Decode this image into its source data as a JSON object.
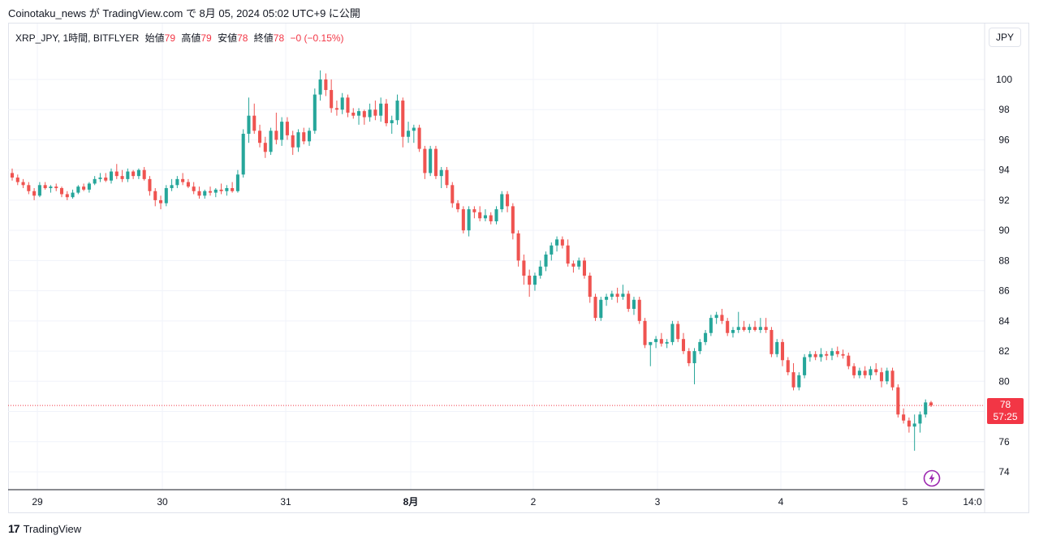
{
  "header": {
    "publisher_line": "Coinotaku_news が TradingView.com で 8月 05, 2024 05:02 UTC+9 に公開"
  },
  "legend": {
    "symbol": "XRP_JPY, 1時間, BITFLYER",
    "open_label": "始値",
    "open_value": "79",
    "high_label": "高値",
    "high_value": "79",
    "low_label": "安値",
    "low_value": "78",
    "close_label": "終値",
    "close_value": "78",
    "change": "−0 (−0.15%)"
  },
  "currency_button": "JPY",
  "price_tag": {
    "price": "78",
    "countdown": "57:25"
  },
  "footer": {
    "brand": "TradingView",
    "logo": "17"
  },
  "colors": {
    "up": "#26a69a",
    "down": "#ef5350",
    "grid": "#f0f3fa",
    "axis_text": "#131722",
    "price_line": "#f23645"
  },
  "icons": {
    "flash": "lightning-circle-icon"
  },
  "chart_data": {
    "type": "candlestick",
    "symbol": "XRP_JPY",
    "interval": "1h",
    "exchange": "BITFLYER",
    "ylim": [
      72.5,
      102.5
    ],
    "y_ticks": [
      74,
      76,
      78,
      80,
      82,
      84,
      86,
      88,
      90,
      92,
      94,
      96,
      98,
      100
    ],
    "x_ticks": [
      "29",
      "30",
      "31",
      "8月",
      "2",
      "3",
      "4",
      "5",
      "14:0"
    ],
    "current_price": 78.4,
    "grid": true,
    "ohlc": [
      [
        93.8,
        94.1,
        93.3,
        93.5
      ],
      [
        93.5,
        93.7,
        93.0,
        93.2
      ],
      [
        93.2,
        93.4,
        92.8,
        93.0
      ],
      [
        93.0,
        93.2,
        92.4,
        92.6
      ],
      [
        92.6,
        92.8,
        92.0,
        92.3
      ],
      [
        92.3,
        93.2,
        92.2,
        93.0
      ],
      [
        93.0,
        93.2,
        92.7,
        92.8
      ],
      [
        92.8,
        93.0,
        92.5,
        92.9
      ],
      [
        92.9,
        93.1,
        92.6,
        92.8
      ],
      [
        92.8,
        92.9,
        92.2,
        92.4
      ],
      [
        92.4,
        92.6,
        92.0,
        92.2
      ],
      [
        92.2,
        92.7,
        92.1,
        92.5
      ],
      [
        92.5,
        93.0,
        92.4,
        92.9
      ],
      [
        92.9,
        93.1,
        92.6,
        92.7
      ],
      [
        92.7,
        93.2,
        92.5,
        93.1
      ],
      [
        93.1,
        93.6,
        93.0,
        93.4
      ],
      [
        93.4,
        93.8,
        93.2,
        93.5
      ],
      [
        93.5,
        93.8,
        93.2,
        93.3
      ],
      [
        93.3,
        94.1,
        93.1,
        93.9
      ],
      [
        93.9,
        94.4,
        93.4,
        93.6
      ],
      [
        93.6,
        94.0,
        93.2,
        93.4
      ],
      [
        93.4,
        94.1,
        93.2,
        93.9
      ],
      [
        93.9,
        94.0,
        93.4,
        93.6
      ],
      [
        93.6,
        94.1,
        93.4,
        94.0
      ],
      [
        94.0,
        94.2,
        93.3,
        93.4
      ],
      [
        93.4,
        93.6,
        92.3,
        92.6
      ],
      [
        92.6,
        92.8,
        91.6,
        92.0
      ],
      [
        92.0,
        92.3,
        91.4,
        91.8
      ],
      [
        91.8,
        93.0,
        91.6,
        92.8
      ],
      [
        92.8,
        93.4,
        92.6,
        93.0
      ],
      [
        93.0,
        93.6,
        92.8,
        93.4
      ],
      [
        93.4,
        93.8,
        93.0,
        93.2
      ],
      [
        93.2,
        93.4,
        92.8,
        92.9
      ],
      [
        92.9,
        93.2,
        92.4,
        92.6
      ],
      [
        92.6,
        92.9,
        92.1,
        92.3
      ],
      [
        92.3,
        92.7,
        92.1,
        92.6
      ],
      [
        92.6,
        92.9,
        92.3,
        92.5
      ],
      [
        92.5,
        92.8,
        92.2,
        92.7
      ],
      [
        92.7,
        93.1,
        92.4,
        92.6
      ],
      [
        92.6,
        93.0,
        92.3,
        92.8
      ],
      [
        92.8,
        93.2,
        92.5,
        92.6
      ],
      [
        92.6,
        94.0,
        92.5,
        93.7
      ],
      [
        93.7,
        96.7,
        93.5,
        96.4
      ],
      [
        96.4,
        98.8,
        95.8,
        97.6
      ],
      [
        97.6,
        98.4,
        96.4,
        96.6
      ],
      [
        96.6,
        97.0,
        95.5,
        95.8
      ],
      [
        95.8,
        96.2,
        94.8,
        95.2
      ],
      [
        95.2,
        96.8,
        95.0,
        96.6
      ],
      [
        96.6,
        97.8,
        95.7,
        96.0
      ],
      [
        96.0,
        97.5,
        95.6,
        97.2
      ],
      [
        97.2,
        97.5,
        96.0,
        96.3
      ],
      [
        96.3,
        96.6,
        95.0,
        95.5
      ],
      [
        95.5,
        96.7,
        95.2,
        96.5
      ],
      [
        96.5,
        96.8,
        95.7,
        95.9
      ],
      [
        95.9,
        96.8,
        95.6,
        96.6
      ],
      [
        96.6,
        99.4,
        96.4,
        99.0
      ],
      [
        99.0,
        100.6,
        98.6,
        100.0
      ],
      [
        100.0,
        100.4,
        98.9,
        99.3
      ],
      [
        99.3,
        100.0,
        97.8,
        98.1
      ],
      [
        98.1,
        98.6,
        97.6,
        98.0
      ],
      [
        98.0,
        99.1,
        97.7,
        98.8
      ],
      [
        98.8,
        99.0,
        97.5,
        97.8
      ],
      [
        97.8,
        98.1,
        97.4,
        97.6
      ],
      [
        97.6,
        98.1,
        97.0,
        97.9
      ],
      [
        97.9,
        98.0,
        97.0,
        97.5
      ],
      [
        97.5,
        98.4,
        97.2,
        98.0
      ],
      [
        98.0,
        98.6,
        97.3,
        97.6
      ],
      [
        97.6,
        98.8,
        97.2,
        98.4
      ],
      [
        98.4,
        98.7,
        96.9,
        97.1
      ],
      [
        97.1,
        97.6,
        96.4,
        97.3
      ],
      [
        97.3,
        99.0,
        97.0,
        98.6
      ],
      [
        98.6,
        98.8,
        95.5,
        96.2
      ],
      [
        96.2,
        97.2,
        95.8,
        96.6
      ],
      [
        96.6,
        97.0,
        95.8,
        96.8
      ],
      [
        96.8,
        97.0,
        95.2,
        95.4
      ],
      [
        95.4,
        95.6,
        93.4,
        93.8
      ],
      [
        93.8,
        95.6,
        93.6,
        95.4
      ],
      [
        95.4,
        95.6,
        93.4,
        93.6
      ],
      [
        93.6,
        94.2,
        92.8,
        94.0
      ],
      [
        94.0,
        94.2,
        92.8,
        93.0
      ],
      [
        93.0,
        93.2,
        91.5,
        91.8
      ],
      [
        91.8,
        92.0,
        91.2,
        91.4
      ],
      [
        91.4,
        91.6,
        89.8,
        90.0
      ],
      [
        90.0,
        91.6,
        89.6,
        91.4
      ],
      [
        91.4,
        91.6,
        90.8,
        91.2
      ],
      [
        91.2,
        91.6,
        90.6,
        90.8
      ],
      [
        90.8,
        91.4,
        90.6,
        91.0
      ],
      [
        91.0,
        91.2,
        90.4,
        90.6
      ],
      [
        90.6,
        91.6,
        90.4,
        91.4
      ],
      [
        91.4,
        92.6,
        91.2,
        92.4
      ],
      [
        92.4,
        92.6,
        91.2,
        91.6
      ],
      [
        91.6,
        91.8,
        89.4,
        89.8
      ],
      [
        89.8,
        90.0,
        87.6,
        88.0
      ],
      [
        88.0,
        88.4,
        86.4,
        87.0
      ],
      [
        87.0,
        87.4,
        85.6,
        86.4
      ],
      [
        86.4,
        87.2,
        86.0,
        87.0
      ],
      [
        87.0,
        88.0,
        86.8,
        87.6
      ],
      [
        87.6,
        88.6,
        87.3,
        88.4
      ],
      [
        88.4,
        89.2,
        88.0,
        89.0
      ],
      [
        89.0,
        89.6,
        88.6,
        89.4
      ],
      [
        89.4,
        89.6,
        88.8,
        89.0
      ],
      [
        89.0,
        89.4,
        87.6,
        87.8
      ],
      [
        87.8,
        88.0,
        87.2,
        87.6
      ],
      [
        87.6,
        88.2,
        87.4,
        88.0
      ],
      [
        88.0,
        88.2,
        86.8,
        87.0
      ],
      [
        87.0,
        87.2,
        85.2,
        85.6
      ],
      [
        85.6,
        85.8,
        84.0,
        84.2
      ],
      [
        84.2,
        85.6,
        84.0,
        85.4
      ],
      [
        85.4,
        85.8,
        85.0,
        85.6
      ],
      [
        85.6,
        86.0,
        85.4,
        85.8
      ],
      [
        85.8,
        86.2,
        85.2,
        85.6
      ],
      [
        85.6,
        86.4,
        85.4,
        85.8
      ],
      [
        85.8,
        86.0,
        84.6,
        84.8
      ],
      [
        84.8,
        85.6,
        84.4,
        85.4
      ],
      [
        85.4,
        85.6,
        83.8,
        84.0
      ],
      [
        84.0,
        84.2,
        82.2,
        82.4
      ],
      [
        82.4,
        82.6,
        81.0,
        82.6
      ],
      [
        82.6,
        83.0,
        82.2,
        82.8
      ],
      [
        82.8,
        83.2,
        82.3,
        82.5
      ],
      [
        82.5,
        82.8,
        82.2,
        82.6
      ],
      [
        82.6,
        84.0,
        82.4,
        83.8
      ],
      [
        83.8,
        84.0,
        82.6,
        82.8
      ],
      [
        82.8,
        83.2,
        81.8,
        82.0
      ],
      [
        82.0,
        82.2,
        81.0,
        81.2
      ],
      [
        81.2,
        82.2,
        79.8,
        82.0
      ],
      [
        82.0,
        82.8,
        81.8,
        82.6
      ],
      [
        82.6,
        83.4,
        82.4,
        83.2
      ],
      [
        83.2,
        84.4,
        83.0,
        84.2
      ],
      [
        84.2,
        84.6,
        83.8,
        84.4
      ],
      [
        84.4,
        84.8,
        83.8,
        84.0
      ],
      [
        84.0,
        84.2,
        83.0,
        83.2
      ],
      [
        83.2,
        83.6,
        82.9,
        83.4
      ],
      [
        83.4,
        84.6,
        83.2,
        83.6
      ],
      [
        83.6,
        84.0,
        83.3,
        83.4
      ],
      [
        83.4,
        83.8,
        83.2,
        83.6
      ],
      [
        83.6,
        84.0,
        83.3,
        83.4
      ],
      [
        83.4,
        84.2,
        83.2,
        83.6
      ],
      [
        83.6,
        84.2,
        83.2,
        83.4
      ],
      [
        83.4,
        83.6,
        81.6,
        81.8
      ],
      [
        81.8,
        82.8,
        81.6,
        82.6
      ],
      [
        82.6,
        82.8,
        81.0,
        81.4
      ],
      [
        81.4,
        81.6,
        80.4,
        80.6
      ],
      [
        80.6,
        81.2,
        79.4,
        79.6
      ],
      [
        79.6,
        80.6,
        79.4,
        80.4
      ],
      [
        80.4,
        81.8,
        80.2,
        81.6
      ],
      [
        81.6,
        82.0,
        81.3,
        81.8
      ],
      [
        81.8,
        82.0,
        81.4,
        81.6
      ],
      [
        81.6,
        82.2,
        81.3,
        81.8
      ],
      [
        81.8,
        82.0,
        81.4,
        81.7
      ],
      [
        81.7,
        82.2,
        81.4,
        82.0
      ],
      [
        82.0,
        82.3,
        81.6,
        81.8
      ],
      [
        81.8,
        82.1,
        81.5,
        81.7
      ],
      [
        81.7,
        81.9,
        80.8,
        81.0
      ],
      [
        81.0,
        81.2,
        80.2,
        80.4
      ],
      [
        80.4,
        80.9,
        80.2,
        80.7
      ],
      [
        80.7,
        81.0,
        80.2,
        80.4
      ],
      [
        80.4,
        81.0,
        80.1,
        80.8
      ],
      [
        80.8,
        81.2,
        80.4,
        80.6
      ],
      [
        80.6,
        80.9,
        79.6,
        80.0
      ],
      [
        80.0,
        80.9,
        79.8,
        80.7
      ],
      [
        80.7,
        80.9,
        79.4,
        79.6
      ],
      [
        79.6,
        79.8,
        77.6,
        77.8
      ],
      [
        77.8,
        78.2,
        77.2,
        77.4
      ],
      [
        77.4,
        77.6,
        76.6,
        77.0
      ],
      [
        77.0,
        77.8,
        75.4,
        77.2
      ],
      [
        77.2,
        78.0,
        76.6,
        77.8
      ],
      [
        77.8,
        78.8,
        77.6,
        78.6
      ],
      [
        78.6,
        78.7,
        78.3,
        78.4
      ]
    ]
  }
}
